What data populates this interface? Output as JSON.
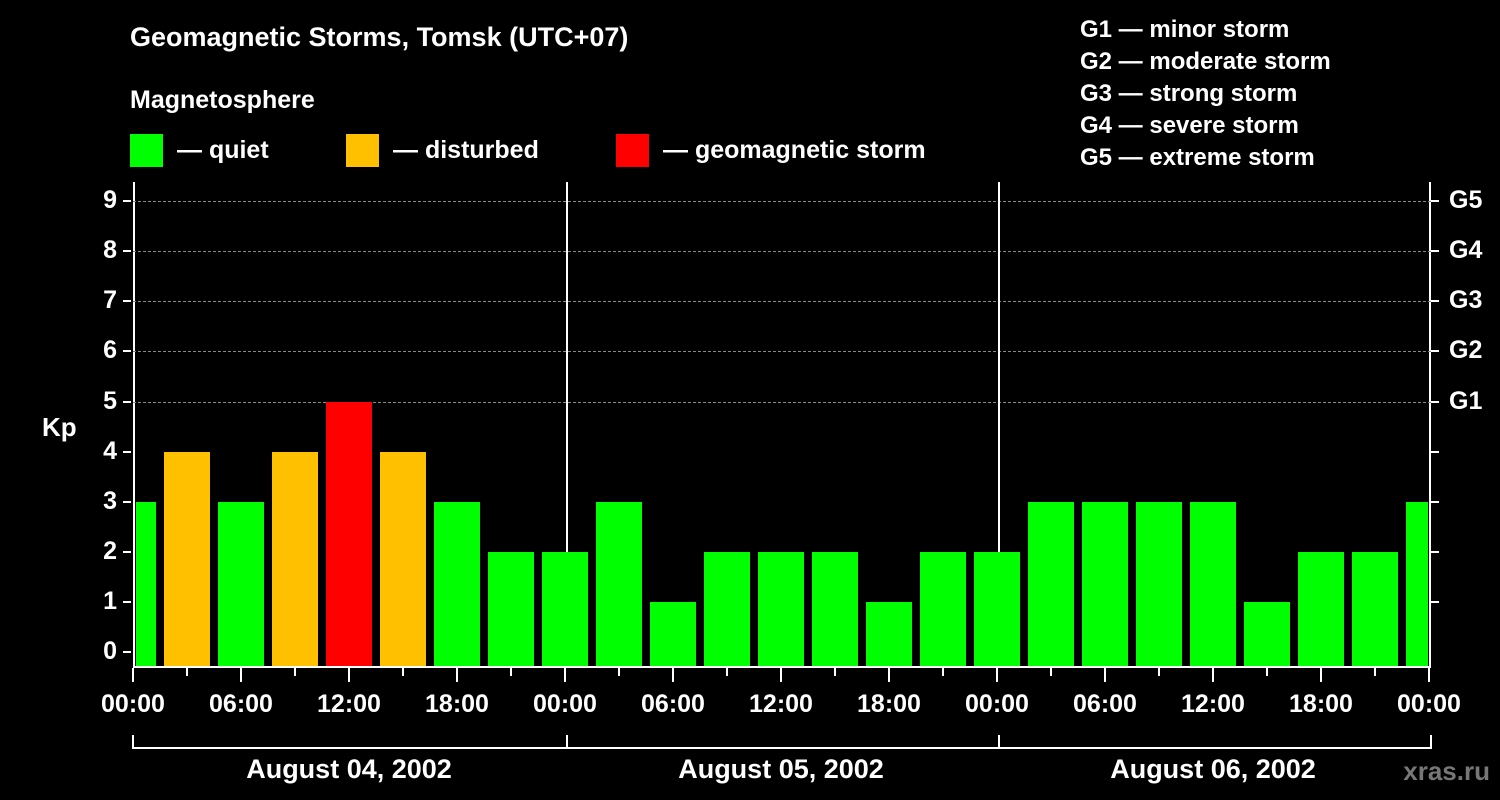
{
  "header": {
    "title": "Geomagnetic Storms, Tomsk (UTC+07)",
    "subtitle": "Magnetosphere"
  },
  "legend": [
    {
      "label": "— quiet",
      "color": "#00ff00"
    },
    {
      "label": "— disturbed",
      "color": "#ffc000"
    },
    {
      "label": "— geomagnetic storm",
      "color": "#ff0000"
    }
  ],
  "storm_scale": [
    "G1 — minor storm",
    "G2 — moderate storm",
    "G3 — strong storm",
    "G4 — severe storm",
    "G5 — extreme storm"
  ],
  "axis": {
    "y_label": "Kp",
    "y_ticks": [
      "0",
      "1",
      "2",
      "3",
      "4",
      "5",
      "6",
      "7",
      "8",
      "9"
    ],
    "g_ticks": [
      {
        "label": "G1",
        "kp": 5
      },
      {
        "label": "G2",
        "kp": 6
      },
      {
        "label": "G3",
        "kp": 7
      },
      {
        "label": "G4",
        "kp": 8
      },
      {
        "label": "G5",
        "kp": 9
      }
    ],
    "x_ticks": [
      "00:00",
      "06:00",
      "12:00",
      "18:00",
      "00:00",
      "06:00",
      "12:00",
      "18:00",
      "00:00",
      "06:00",
      "12:00",
      "18:00",
      "00:00"
    ],
    "days": [
      "August 04, 2002",
      "August 05, 2002",
      "August 06, 2002"
    ]
  },
  "watermark": "xras.ru",
  "chart_data": {
    "type": "bar",
    "title": "Geomagnetic Storms, Tomsk (UTC+07)",
    "xlabel": "",
    "ylabel": "Kp",
    "ylim": [
      0,
      9
    ],
    "grid": "dashed horizontal at Kp 5-9",
    "categories": [
      "Aug 04 00:00",
      "Aug 04 03:00",
      "Aug 04 06:00",
      "Aug 04 09:00",
      "Aug 04 12:00",
      "Aug 04 15:00",
      "Aug 04 18:00",
      "Aug 04 21:00",
      "Aug 05 00:00",
      "Aug 05 03:00",
      "Aug 05 06:00",
      "Aug 05 09:00",
      "Aug 05 12:00",
      "Aug 05 15:00",
      "Aug 05 18:00",
      "Aug 05 21:00",
      "Aug 06 00:00",
      "Aug 06 03:00",
      "Aug 06 06:00",
      "Aug 06 09:00",
      "Aug 06 12:00",
      "Aug 06 15:00",
      "Aug 06 18:00",
      "Aug 06 21:00",
      "Aug 07 00:00"
    ],
    "values": [
      3,
      4,
      3,
      4,
      5,
      4,
      3,
      2,
      2,
      3,
      1,
      2,
      2,
      2,
      1,
      2,
      2,
      3,
      3,
      3,
      3,
      1,
      2,
      2,
      3
    ],
    "status": [
      "quiet",
      "disturbed",
      "quiet",
      "disturbed",
      "storm",
      "disturbed",
      "quiet",
      "quiet",
      "quiet",
      "quiet",
      "quiet",
      "quiet",
      "quiet",
      "quiet",
      "quiet",
      "quiet",
      "quiet",
      "quiet",
      "quiet",
      "quiet",
      "quiet",
      "quiet",
      "quiet",
      "quiet",
      "quiet"
    ],
    "colors": {
      "quiet": "#00ff00",
      "disturbed": "#ffc000",
      "storm": "#ff0000"
    },
    "right_axis": {
      "G1": 5,
      "G2": 6,
      "G3": 7,
      "G4": 8,
      "G5": 9
    }
  }
}
